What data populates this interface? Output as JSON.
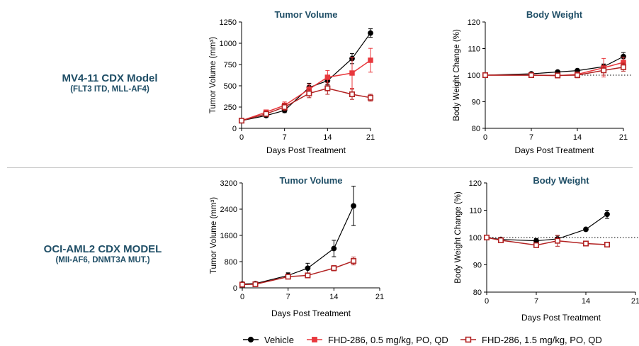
{
  "models": [
    {
      "title": "MV4-11 CDX Model",
      "subtitle": "(FLT3 ITD, MLL-AF4)"
    },
    {
      "title": "OCI-AML2 CDX MODEL",
      "subtitle": "(MII-AF6, DNMT3A MUT.)"
    }
  ],
  "legend": [
    {
      "label": "Vehicle",
      "color": "#000000",
      "marker": "filled-circle"
    },
    {
      "label": "FHD-286, 0.5 mg/kg, PO, QD",
      "color": "#e8383d",
      "marker": "filled-square"
    },
    {
      "label": "FHD-286, 1.5 mg/kg, PO, QD",
      "color": "#b22222",
      "marker": "open-square"
    }
  ],
  "chart_data": [
    {
      "type": "line",
      "title": "Tumor Volume",
      "xlabel": "Days Post Treatment",
      "ylabel": "Tumor Volume (mm³)",
      "xlim": [
        0,
        21
      ],
      "ylim": [
        0,
        1250
      ],
      "xticks": [
        0,
        7,
        14,
        21
      ],
      "yticks": [
        0,
        250,
        500,
        750,
        1000,
        1250
      ],
      "series": [
        {
          "name": "Vehicle",
          "x": [
            0,
            4,
            7,
            11,
            14,
            18,
            21
          ],
          "y": [
            90,
            150,
            210,
            480,
            560,
            820,
            1120
          ],
          "err": [
            10,
            20,
            25,
            50,
            50,
            60,
            50
          ]
        },
        {
          "name": "FHD-286, 0.5 mg/kg, PO, QD",
          "x": [
            0,
            4,
            7,
            11,
            14,
            18,
            21
          ],
          "y": [
            90,
            190,
            270,
            460,
            600,
            650,
            800
          ],
          "err": [
            10,
            20,
            40,
            60,
            80,
            180,
            140
          ]
        },
        {
          "name": "FHD-286, 1.5 mg/kg, PO, QD",
          "x": [
            0,
            4,
            7,
            11,
            14,
            18,
            21
          ],
          "y": [
            90,
            170,
            250,
            410,
            470,
            400,
            360
          ],
          "err": [
            10,
            20,
            40,
            50,
            70,
            60,
            40
          ]
        }
      ]
    },
    {
      "type": "line",
      "title": "Body Weight",
      "xlabel": "Days Post Treatment",
      "ylabel": "Body Weight Change (%)",
      "xlim": [
        0,
        21
      ],
      "ylim": [
        80,
        120
      ],
      "xticks": [
        0,
        7,
        14,
        21
      ],
      "yticks": [
        80,
        90,
        100,
        110,
        120
      ],
      "reference_line": 100,
      "series": [
        {
          "name": "Vehicle",
          "x": [
            0,
            7,
            11,
            14,
            18,
            21
          ],
          "y": [
            100,
            100.5,
            101.2,
            101.7,
            103.2,
            107
          ],
          "err": [
            0.3,
            0.5,
            0.5,
            0.6,
            1.0,
            1.5
          ]
        },
        {
          "name": "FHD-286, 0.5 mg/kg, PO, QD",
          "x": [
            0,
            7,
            11,
            14,
            18,
            21
          ],
          "y": [
            100,
            100,
            99.8,
            100.3,
            102.8,
            104.8
          ],
          "err": [
            0.3,
            0.5,
            0.6,
            0.8,
            3.5,
            2.0
          ]
        },
        {
          "name": "FHD-286, 1.5 mg/kg, PO, QD",
          "x": [
            0,
            7,
            11,
            14,
            18,
            21
          ],
          "y": [
            100,
            100,
            99.9,
            100,
            101.8,
            103
          ],
          "err": [
            0.3,
            0.5,
            0.6,
            1.0,
            1.8,
            1.5
          ]
        }
      ]
    },
    {
      "type": "line",
      "title": "Tumor Volume",
      "xlabel": "Days Post Treatment",
      "ylabel": "Tumor Volume (mm³)",
      "xlim": [
        0,
        21
      ],
      "ylim": [
        0,
        3200
      ],
      "xticks": [
        0,
        7,
        14,
        21
      ],
      "yticks": [
        0,
        800,
        1600,
        2400,
        3200
      ],
      "series": [
        {
          "name": "Vehicle",
          "x": [
            0,
            2,
            7,
            10,
            14,
            17
          ],
          "y": [
            120,
            130,
            380,
            600,
            1200,
            2500
          ],
          "err": [
            20,
            30,
            80,
            150,
            250,
            600
          ]
        },
        {
          "name": "FHD-286, 1.5 mg/kg, PO, QD",
          "x": [
            0,
            2,
            7,
            10,
            14,
            17
          ],
          "y": [
            100,
            110,
            340,
            380,
            600,
            820
          ],
          "err": [
            20,
            20,
            50,
            60,
            80,
            120
          ]
        }
      ]
    },
    {
      "type": "line",
      "title": "Body Weight",
      "xlabel": "Days Post Treatment",
      "ylabel": "Body Weight Change (%)",
      "xlim": [
        0,
        21
      ],
      "ylim": [
        80,
        120
      ],
      "xticks": [
        0,
        7,
        14,
        21
      ],
      "yticks": [
        80,
        90,
        100,
        110,
        120
      ],
      "reference_line": 100,
      "series": [
        {
          "name": "Vehicle",
          "x": [
            0,
            2,
            7,
            10,
            14,
            17
          ],
          "y": [
            100,
            99.3,
            98.8,
            99.5,
            103,
            108.5
          ],
          "err": [
            0.3,
            0.5,
            0.8,
            1.2,
            0.6,
            1.5
          ]
        },
        {
          "name": "FHD-286, 1.5 mg/kg, PO, QD",
          "x": [
            0,
            2,
            7,
            10,
            14,
            17
          ],
          "y": [
            100,
            99,
            97.2,
            98.8,
            97.8,
            97.4
          ],
          "err": [
            0.3,
            0.5,
            0.8,
            2.0,
            0.8,
            0.6
          ]
        }
      ]
    }
  ]
}
